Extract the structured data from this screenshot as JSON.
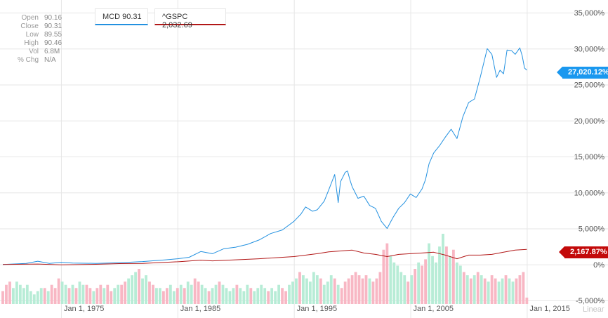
{
  "ohlc": {
    "rows": [
      {
        "label": "Open",
        "value": "90.16"
      },
      {
        "label": "Close",
        "value": "90.31"
      },
      {
        "label": "Low",
        "value": "89.55"
      },
      {
        "label": "High",
        "value": "90.46"
      },
      {
        "label": "Vol",
        "value": "6.8M"
      },
      {
        "label": "% Chg",
        "value": "N/A"
      }
    ]
  },
  "legend": {
    "mcd": "MCD 90.31",
    "gspc": "^GSPC 2,032.69"
  },
  "badges": {
    "mcd": "27,020.12%",
    "gspc": "2,167.87%"
  },
  "scale_label": "Linear",
  "colors": {
    "mcd": "#2391e0",
    "gspc": "#b21818",
    "mcd_badge": "#1a98ef",
    "gspc_badge": "#c30a0a",
    "vol_up": "#b7ecd6",
    "vol_down": "#f8b7c4",
    "grid": "#e6e6e6"
  },
  "chart_data": {
    "type": "line",
    "y_axis": {
      "ticks": [
        "35,000%",
        "30,000%",
        "25,000%",
        "20,000%",
        "15,000%",
        "10,000%",
        "5,000%",
        "0%",
        "-5,000%"
      ],
      "values": [
        35000,
        30000,
        25000,
        20000,
        15000,
        10000,
        5000,
        0,
        -5000
      ],
      "range": [
        -5000,
        35000
      ],
      "position": "right"
    },
    "x_axis": {
      "ticks": [
        "Jan 1, 1975",
        "Jan 1, 1985",
        "Jan 1, 1995",
        "Jan 1, 2005",
        "Jan 1, 2015"
      ],
      "tick_years": [
        1975,
        1985,
        1995,
        2005,
        2015
      ],
      "range": [
        1970,
        2015.7
      ]
    },
    "grid": true,
    "series": [
      {
        "name": "MCD",
        "points": [
          [
            1970,
            0
          ],
          [
            1972,
            150
          ],
          [
            1973,
            450
          ],
          [
            1974,
            150
          ],
          [
            1975,
            300
          ],
          [
            1976,
            200
          ],
          [
            1978,
            150
          ],
          [
            1980,
            250
          ],
          [
            1982,
            400
          ],
          [
            1984,
            650
          ],
          [
            1985,
            800
          ],
          [
            1986,
            1000
          ],
          [
            1987,
            1800
          ],
          [
            1988,
            1500
          ],
          [
            1989,
            2200
          ],
          [
            1990,
            2400
          ],
          [
            1991,
            2800
          ],
          [
            1992,
            3400
          ],
          [
            1993,
            4300
          ],
          [
            1994,
            4800
          ],
          [
            1995,
            6000
          ],
          [
            1995.6,
            7000
          ],
          [
            1996,
            8000
          ],
          [
            1996.6,
            7400
          ],
          [
            1997,
            7600
          ],
          [
            1997.6,
            8800
          ],
          [
            1998,
            10400
          ],
          [
            1998.5,
            12500
          ],
          [
            1998.8,
            8600
          ],
          [
            1999,
            11500
          ],
          [
            1999.4,
            12800
          ],
          [
            1999.6,
            13000
          ],
          [
            1999.8,
            11800
          ],
          [
            2000,
            10800
          ],
          [
            2000.5,
            9200
          ],
          [
            2001,
            9500
          ],
          [
            2001.5,
            8200
          ],
          [
            2002,
            7800
          ],
          [
            2002.5,
            6000
          ],
          [
            2003,
            5000
          ],
          [
            2003.5,
            6500
          ],
          [
            2004,
            7800
          ],
          [
            2004.5,
            8600
          ],
          [
            2005,
            9800
          ],
          [
            2005.5,
            9300
          ],
          [
            2006,
            10500
          ],
          [
            2006.3,
            11800
          ],
          [
            2006.6,
            14000
          ],
          [
            2007,
            15500
          ],
          [
            2007.5,
            16500
          ],
          [
            2008,
            17700
          ],
          [
            2008.5,
            18800
          ],
          [
            2009,
            17500
          ],
          [
            2009.5,
            20500
          ],
          [
            2010,
            22500
          ],
          [
            2010.5,
            23000
          ],
          [
            2011,
            26000
          ],
          [
            2011.3,
            28000
          ],
          [
            2011.6,
            30000
          ],
          [
            2012,
            29200
          ],
          [
            2012.4,
            26000
          ],
          [
            2012.7,
            27000
          ],
          [
            2013,
            26500
          ],
          [
            2013.3,
            29800
          ],
          [
            2013.7,
            29700
          ],
          [
            2014,
            29200
          ],
          [
            2014.4,
            30100
          ],
          [
            2014.6,
            29000
          ],
          [
            2014.8,
            27300
          ],
          [
            2015,
            27000
          ]
        ]
      },
      {
        "name": "^GSPC",
        "points": [
          [
            1970,
            0
          ],
          [
            1973,
            60
          ],
          [
            1975,
            -50
          ],
          [
            1978,
            20
          ],
          [
            1980,
            120
          ],
          [
            1982,
            150
          ],
          [
            1985,
            380
          ],
          [
            1987,
            600
          ],
          [
            1988,
            500
          ],
          [
            1990,
            650
          ],
          [
            1992,
            800
          ],
          [
            1995,
            1100
          ],
          [
            1997,
            1500
          ],
          [
            1998,
            1750
          ],
          [
            2000,
            2000
          ],
          [
            2001,
            1600
          ],
          [
            2002,
            1400
          ],
          [
            2003,
            1100
          ],
          [
            2004,
            1400
          ],
          [
            2005,
            1500
          ],
          [
            2006,
            1600
          ],
          [
            2007,
            1700
          ],
          [
            2008,
            1300
          ],
          [
            2009,
            800
          ],
          [
            2010,
            1300
          ],
          [
            2011,
            1300
          ],
          [
            2012,
            1400
          ],
          [
            2013,
            1700
          ],
          [
            2014,
            2000
          ],
          [
            2015,
            2100
          ]
        ]
      }
    ],
    "volume": {
      "bars": [
        [
          1970,
          4,
          "d"
        ],
        [
          1970.3,
          6,
          "d"
        ],
        [
          1970.6,
          7,
          "d"
        ],
        [
          1970.9,
          5,
          "u"
        ],
        [
          1971.2,
          7,
          "u"
        ],
        [
          1971.5,
          6,
          "u"
        ],
        [
          1971.8,
          5,
          "u"
        ],
        [
          1972.1,
          6,
          "u"
        ],
        [
          1972.4,
          4,
          "u"
        ],
        [
          1972.7,
          3,
          "u"
        ],
        [
          1973,
          4,
          "u"
        ],
        [
          1973.3,
          5,
          "u"
        ],
        [
          1973.6,
          5,
          "d"
        ],
        [
          1973.9,
          4,
          "u"
        ],
        [
          1974.2,
          6,
          "d"
        ],
        [
          1974.5,
          5,
          "d"
        ],
        [
          1974.8,
          8,
          "d"
        ],
        [
          1975.1,
          7,
          "u"
        ],
        [
          1975.4,
          6,
          "u"
        ],
        [
          1975.7,
          5,
          "d"
        ],
        [
          1976,
          6,
          "u"
        ],
        [
          1976.3,
          5,
          "d"
        ],
        [
          1976.6,
          7,
          "u"
        ],
        [
          1976.9,
          6,
          "u"
        ],
        [
          1977.2,
          6,
          "d"
        ],
        [
          1977.5,
          5,
          "d"
        ],
        [
          1977.8,
          4,
          "u"
        ],
        [
          1978.1,
          5,
          "d"
        ],
        [
          1978.4,
          6,
          "d"
        ],
        [
          1978.7,
          5,
          "u"
        ],
        [
          1979,
          6,
          "d"
        ],
        [
          1979.3,
          4,
          "d"
        ],
        [
          1979.6,
          5,
          "u"
        ],
        [
          1979.9,
          6,
          "u"
        ],
        [
          1980.2,
          6,
          "d"
        ],
        [
          1980.5,
          7,
          "d"
        ],
        [
          1980.8,
          8,
          "u"
        ],
        [
          1981.1,
          9,
          "u"
        ],
        [
          1981.4,
          10,
          "u"
        ],
        [
          1981.7,
          11,
          "d"
        ],
        [
          1982,
          8,
          "u"
        ],
        [
          1982.3,
          9,
          "u"
        ],
        [
          1982.6,
          7,
          "d"
        ],
        [
          1982.9,
          6,
          "d"
        ],
        [
          1983.2,
          5,
          "u"
        ],
        [
          1983.5,
          5,
          "u"
        ],
        [
          1983.8,
          4,
          "d"
        ],
        [
          1984.1,
          5,
          "d"
        ],
        [
          1984.4,
          6,
          "u"
        ],
        [
          1984.7,
          4,
          "u"
        ],
        [
          1985,
          5,
          "d"
        ],
        [
          1985.3,
          6,
          "u"
        ],
        [
          1985.6,
          5,
          "d"
        ],
        [
          1985.9,
          7,
          "u"
        ],
        [
          1986.2,
          6,
          "u"
        ],
        [
          1986.5,
          8,
          "d"
        ],
        [
          1986.8,
          7,
          "d"
        ],
        [
          1987.1,
          6,
          "u"
        ],
        [
          1987.4,
          5,
          "u"
        ],
        [
          1987.7,
          4,
          "d"
        ],
        [
          1988,
          5,
          "u"
        ],
        [
          1988.3,
          6,
          "u"
        ],
        [
          1988.6,
          7,
          "d"
        ],
        [
          1988.9,
          6,
          "u"
        ],
        [
          1989.2,
          5,
          "u"
        ],
        [
          1989.5,
          4,
          "u"
        ],
        [
          1989.8,
          5,
          "u"
        ],
        [
          1990.1,
          6,
          "d"
        ],
        [
          1990.4,
          5,
          "u"
        ],
        [
          1990.7,
          4,
          "u"
        ],
        [
          1991,
          6,
          "u"
        ],
        [
          1991.3,
          5,
          "d"
        ],
        [
          1991.6,
          4,
          "u"
        ],
        [
          1991.9,
          5,
          "u"
        ],
        [
          1992.2,
          6,
          "u"
        ],
        [
          1992.5,
          5,
          "u"
        ],
        [
          1992.8,
          4,
          "d"
        ],
        [
          1993.1,
          5,
          "u"
        ],
        [
          1993.4,
          4,
          "u"
        ],
        [
          1993.7,
          6,
          "u"
        ],
        [
          1994,
          5,
          "d"
        ],
        [
          1994.3,
          4,
          "d"
        ],
        [
          1994.6,
          6,
          "u"
        ],
        [
          1994.9,
          7,
          "u"
        ],
        [
          1995.2,
          8,
          "u"
        ],
        [
          1995.5,
          10,
          "d"
        ],
        [
          1995.8,
          9,
          "u"
        ],
        [
          1996.1,
          8,
          "u"
        ],
        [
          1996.4,
          7,
          "u"
        ],
        [
          1996.7,
          10,
          "u"
        ],
        [
          1997,
          9,
          "u"
        ],
        [
          1997.3,
          8,
          "d"
        ],
        [
          1997.6,
          6,
          "u"
        ],
        [
          1997.9,
          7,
          "u"
        ],
        [
          1998.2,
          9,
          "u"
        ],
        [
          1998.5,
          8,
          "d"
        ],
        [
          1998.8,
          6,
          "u"
        ],
        [
          1999.1,
          5,
          "d"
        ],
        [
          1999.4,
          7,
          "d"
        ],
        [
          1999.7,
          8,
          "d"
        ],
        [
          2000,
          9,
          "d"
        ],
        [
          2000.3,
          10,
          "d"
        ],
        [
          2000.6,
          9,
          "d"
        ],
        [
          2000.9,
          8,
          "d"
        ],
        [
          2001.2,
          9,
          "d"
        ],
        [
          2001.5,
          8,
          "u"
        ],
        [
          2001.8,
          7,
          "d"
        ],
        [
          2002.1,
          8,
          "d"
        ],
        [
          2002.4,
          10,
          "d"
        ],
        [
          2002.7,
          17,
          "d"
        ],
        [
          2003,
          19,
          "d"
        ],
        [
          2003.3,
          15,
          "u"
        ],
        [
          2003.6,
          13,
          "u"
        ],
        [
          2003.9,
          12,
          "u"
        ],
        [
          2004.2,
          10,
          "u"
        ],
        [
          2004.5,
          9,
          "u"
        ],
        [
          2004.8,
          7,
          "d"
        ],
        [
          2005.1,
          9,
          "u"
        ],
        [
          2005.4,
          11,
          "d"
        ],
        [
          2005.7,
          13,
          "u"
        ],
        [
          2006,
          12,
          "d"
        ],
        [
          2006.3,
          14,
          "d"
        ],
        [
          2006.6,
          19,
          "u"
        ],
        [
          2006.9,
          15,
          "u"
        ],
        [
          2007.2,
          13,
          "u"
        ],
        [
          2007.5,
          18,
          "u"
        ],
        [
          2007.8,
          22,
          "u"
        ],
        [
          2008.1,
          18,
          "d"
        ],
        [
          2008.4,
          15,
          "u"
        ],
        [
          2008.7,
          17,
          "d"
        ],
        [
          2009,
          13,
          "u"
        ],
        [
          2009.3,
          12,
          "u"
        ],
        [
          2009.6,
          10,
          "d"
        ],
        [
          2009.9,
          9,
          "u"
        ],
        [
          2010.2,
          8,
          "d"
        ],
        [
          2010.5,
          9,
          "u"
        ],
        [
          2010.8,
          10,
          "d"
        ],
        [
          2011.1,
          9,
          "u"
        ],
        [
          2011.4,
          8,
          "d"
        ],
        [
          2011.7,
          7,
          "u"
        ],
        [
          2012,
          9,
          "d"
        ],
        [
          2012.3,
          8,
          "d"
        ],
        [
          2012.6,
          7,
          "u"
        ],
        [
          2012.9,
          8,
          "u"
        ],
        [
          2013.2,
          9,
          "d"
        ],
        [
          2013.5,
          8,
          "u"
        ],
        [
          2013.8,
          7,
          "u"
        ],
        [
          2014.1,
          8,
          "d"
        ],
        [
          2014.4,
          9,
          "d"
        ],
        [
          2014.7,
          10,
          "d"
        ],
        [
          2015,
          2,
          "d"
        ]
      ]
    }
  }
}
